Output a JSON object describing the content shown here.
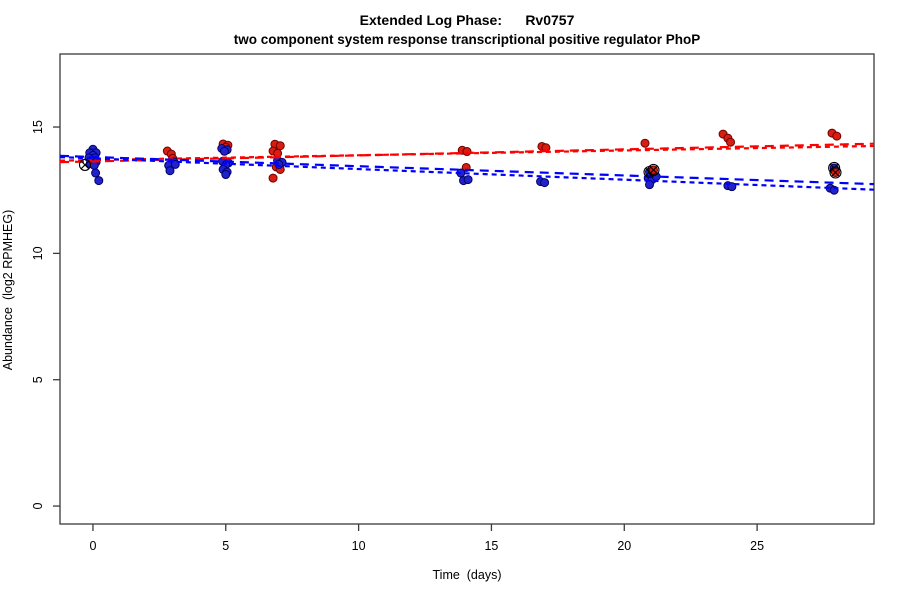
{
  "figure": {
    "title_line1": "Extended Log Phase:      Rv0757",
    "title_line2": "two component system response transcriptional positive regulator PhoP",
    "x_axis": {
      "label": "Time  (days)",
      "tick_labels": [
        "0",
        "5",
        "10",
        "15",
        "20",
        "25"
      ],
      "tick_values": [
        0,
        5,
        10,
        15,
        20,
        25
      ]
    },
    "y_axis": {
      "label": "Abundance  (log2 RPMHEG)",
      "tick_labels": [
        "0",
        "5",
        "10",
        "15"
      ],
      "tick_values": [
        0,
        5,
        10,
        15
      ]
    },
    "colors": {
      "red_point_fill": "#d81e10",
      "red_point_stroke": "#6e0000",
      "blue_point_fill": "#2222cc",
      "blue_point_stroke": "#000066",
      "red_trend": "#ff0000",
      "blue_trend": "#0000ff",
      "flag_stroke": "#000000",
      "axis": "#3a3a3a"
    }
  },
  "chart_data": {
    "type": "scatter",
    "title": "Extended Log Phase: Rv0757",
    "subtitle": "two component system response transcriptional positive regulator PhoP",
    "xlabel": "Time (days)",
    "ylabel": "Abundance (log2 RPMHEG)",
    "xlim": [
      -1.24,
      29.4
    ],
    "ylim": [
      -0.71,
      17.89
    ],
    "grid": false,
    "legend": "none",
    "series": [
      {
        "name": "red-series",
        "marker": "circle",
        "color_key": "red",
        "points": [
          [
            0.05,
            13.78
          ],
          [
            0.1,
            13.68
          ],
          [
            2.8,
            14.05
          ],
          [
            2.95,
            13.93
          ],
          [
            3.0,
            13.76
          ],
          [
            4.9,
            14.33
          ],
          [
            5.08,
            14.28
          ],
          [
            5.0,
            14.2
          ],
          [
            6.85,
            14.32
          ],
          [
            7.05,
            14.26
          ],
          [
            6.78,
            14.05
          ],
          [
            6.95,
            13.96
          ],
          [
            6.9,
            13.42
          ],
          [
            7.05,
            13.32
          ],
          [
            6.78,
            12.98
          ],
          [
            13.9,
            14.08
          ],
          [
            14.08,
            14.03
          ],
          [
            14.05,
            13.4
          ],
          [
            16.9,
            14.23
          ],
          [
            17.05,
            14.18
          ],
          [
            20.78,
            14.36
          ],
          [
            23.72,
            14.72
          ],
          [
            23.9,
            14.56
          ],
          [
            24.0,
            14.4
          ],
          [
            27.82,
            14.76
          ],
          [
            28.0,
            14.64
          ]
        ]
      },
      {
        "name": "blue-series",
        "marker": "circle",
        "color_key": "blue",
        "points": [
          [
            0.0,
            14.12
          ],
          [
            -0.12,
            13.98
          ],
          [
            0.12,
            13.98
          ],
          [
            0.0,
            13.88
          ],
          [
            -0.15,
            13.78
          ],
          [
            0.08,
            13.78
          ],
          [
            -0.05,
            13.68
          ],
          [
            0.12,
            13.62
          ],
          [
            -0.1,
            13.55
          ],
          [
            0.05,
            13.48
          ],
          [
            0.1,
            13.18
          ],
          [
            0.22,
            12.88
          ],
          [
            3.05,
            13.62
          ],
          [
            2.85,
            13.48
          ],
          [
            3.1,
            13.52
          ],
          [
            2.9,
            13.27
          ],
          [
            4.85,
            14.15
          ],
          [
            5.05,
            14.1
          ],
          [
            4.95,
            14.04
          ],
          [
            4.88,
            13.64
          ],
          [
            5.1,
            13.58
          ],
          [
            5.0,
            13.5
          ],
          [
            4.9,
            13.32
          ],
          [
            5.05,
            13.22
          ],
          [
            5.0,
            13.12
          ],
          [
            6.95,
            13.68
          ],
          [
            7.12,
            13.6
          ],
          [
            7.0,
            13.52
          ],
          [
            13.85,
            13.18
          ],
          [
            13.95,
            12.88
          ],
          [
            14.12,
            12.92
          ],
          [
            16.85,
            12.84
          ],
          [
            17.0,
            12.8
          ],
          [
            20.9,
            12.98
          ],
          [
            21.05,
            12.92
          ],
          [
            21.2,
            13.04
          ],
          [
            20.95,
            12.72
          ],
          [
            23.9,
            12.68
          ],
          [
            24.05,
            12.64
          ],
          [
            27.75,
            12.58
          ],
          [
            27.9,
            12.5
          ]
        ]
      },
      {
        "name": "flagged-points",
        "marker": "circle-x",
        "color_key": "flag",
        "points_detail": [
          {
            "x": -0.3,
            "y": 13.5,
            "fill": "none"
          },
          {
            "x": 20.95,
            "y": 13.22,
            "fill": "blue"
          },
          {
            "x": 21.1,
            "y": 13.3,
            "fill": "red"
          },
          {
            "x": 27.9,
            "y": 13.38,
            "fill": "blue"
          },
          {
            "x": 27.95,
            "y": 13.2,
            "fill": "red"
          }
        ]
      }
    ],
    "trend_lines": [
      {
        "name": "red-fit-1",
        "color_key": "red",
        "x1": -1.24,
        "y1": 13.61,
        "x2": 29.4,
        "y2": 14.34,
        "dash": "9,6"
      },
      {
        "name": "red-fit-2",
        "color_key": "red",
        "x1": -1.24,
        "y1": 13.67,
        "x2": 29.4,
        "y2": 14.25,
        "dash": "5,4"
      },
      {
        "name": "blue-fit-1",
        "color_key": "blue",
        "x1": -1.24,
        "y1": 13.86,
        "x2": 29.4,
        "y2": 12.74,
        "dash": "9,6"
      },
      {
        "name": "blue-fit-2",
        "color_key": "blue",
        "x1": -1.24,
        "y1": 13.81,
        "x2": 29.4,
        "y2": 12.52,
        "dash": "5,4"
      }
    ]
  }
}
